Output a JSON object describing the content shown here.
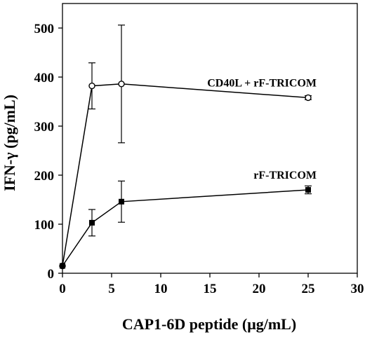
{
  "chart_data": {
    "type": "line",
    "title": "",
    "xlabel": "CAP1-6D peptide (μg/mL)",
    "ylabel": "IFN-γ (pg/mL)",
    "xlim": [
      0,
      30
    ],
    "ylim": [
      0,
      550
    ],
    "xticks": [
      "0",
      "5",
      "10",
      "15",
      "20",
      "25",
      "30"
    ],
    "yticks": [
      "0",
      "100",
      "200",
      "300",
      "400",
      "500"
    ],
    "grid": false,
    "legend": "inline labels at line ends",
    "series": [
      {
        "name": "CD40L + rF-TRICOM",
        "marker": "open-circle",
        "points": [
          {
            "x": 0,
            "y": 15,
            "err": 0
          },
          {
            "x": 3,
            "y": 382,
            "err": 47
          },
          {
            "x": 6,
            "y": 386,
            "err": 120
          },
          {
            "x": 25,
            "y": 358,
            "err": 4
          }
        ]
      },
      {
        "name": "rF-TRICOM",
        "marker": "filled-square",
        "points": [
          {
            "x": 0,
            "y": 15,
            "err": 0
          },
          {
            "x": 3,
            "y": 103,
            "err": 27
          },
          {
            "x": 6,
            "y": 146,
            "err": 42
          },
          {
            "x": 25,
            "y": 170,
            "err": 8
          }
        ]
      }
    ]
  }
}
